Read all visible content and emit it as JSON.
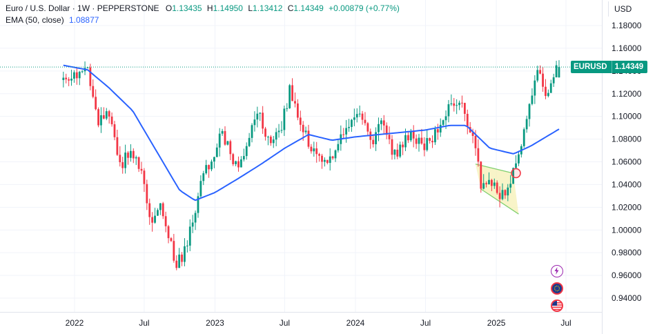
{
  "legend": {
    "symbol": "Euro / U.S. Dollar · 1W · PEPPERSTONE",
    "open_label": "O",
    "open": "1.13435",
    "high_label": "H",
    "high": "1.14950",
    "low_label": "L",
    "low": "1.13412",
    "close_label": "C",
    "close": "1.14349",
    "change": "+0.00879 (+0.77%)",
    "ema_label": "EMA (50, close)",
    "ema_value": "1.08877"
  },
  "currency_button": "USD",
  "price_tag": {
    "symbol": "EURUSD",
    "value": "1.14349"
  },
  "colors": {
    "up": "#089981",
    "down": "#f23645",
    "ema": "#2962ff",
    "wedge_fill": "#f5f0b6",
    "wedge_line": "#7fcf6f",
    "marker": "#f23645",
    "price_line": "#089981"
  },
  "chart_data": {
    "type": "candlestick",
    "interval": "1W",
    "x_ticks": [
      "2022",
      "Jul",
      "2023",
      "Jul",
      "2024",
      "Jul",
      "2025",
      "Jul"
    ],
    "y_ticks": [
      "1.18000",
      "1.16000",
      "1.14000",
      "1.12000",
      "1.10000",
      "1.08000",
      "1.06000",
      "1.04000",
      "1.02000",
      "1.00000",
      "0.98000",
      "0.96000",
      "0.94000"
    ],
    "ylim": [
      0.93,
      1.19
    ],
    "last_price": 1.14349,
    "close_path": [
      [
        "2021-12-03",
        1.132
      ],
      [
        "2022-01-07",
        1.136
      ],
      [
        "2022-02-04",
        1.144
      ],
      [
        "2022-03-04",
        1.093
      ],
      [
        "2022-04-01",
        1.105
      ],
      [
        "2022-04-29",
        1.054
      ],
      [
        "2022-05-27",
        1.073
      ],
      [
        "2022-06-24",
        1.055
      ],
      [
        "2022-07-15",
        1.008
      ],
      [
        "2022-08-12",
        1.025
      ],
      [
        "2022-09-02",
        0.995
      ],
      [
        "2022-09-23",
        0.969
      ],
      [
        "2022-10-21",
        0.986
      ],
      [
        "2022-11-18",
        1.032
      ],
      [
        "2022-12-16",
        1.058
      ],
      [
        "2023-01-20",
        1.085
      ],
      [
        "2023-02-24",
        1.055
      ],
      [
        "2023-03-24",
        1.076
      ],
      [
        "2023-04-28",
        1.102
      ],
      [
        "2023-05-26",
        1.072
      ],
      [
        "2023-06-23",
        1.09
      ],
      [
        "2023-07-14",
        1.123
      ],
      [
        "2023-08-18",
        1.087
      ],
      [
        "2023-09-22",
        1.065
      ],
      [
        "2023-10-06",
        1.055
      ],
      [
        "2023-11-10",
        1.069
      ],
      [
        "2023-12-29",
        1.104
      ],
      [
        "2024-02-16",
        1.078
      ],
      [
        "2024-03-08",
        1.094
      ],
      [
        "2024-04-12",
        1.065
      ],
      [
        "2024-05-24",
        1.085
      ],
      [
        "2024-06-28",
        1.071
      ],
      [
        "2024-08-02",
        1.091
      ],
      [
        "2024-08-30",
        1.105
      ],
      [
        "2024-09-27",
        1.117
      ],
      [
        "2024-11-01",
        1.083
      ],
      [
        "2024-11-22",
        1.042
      ],
      [
        "2024-12-27",
        1.042
      ],
      [
        "2025-01-10",
        1.025
      ],
      [
        "2025-02-14",
        1.05
      ],
      [
        "2025-03-14",
        1.088
      ],
      [
        "2025-04-11",
        1.136
      ],
      [
        "2025-04-25",
        1.137
      ],
      [
        "2025-05-16",
        1.116
      ],
      [
        "2025-06-06",
        1.14
      ],
      [
        "2025-06-13",
        1.1435
      ]
    ],
    "ema_path": [
      [
        "2021-12-03",
        1.145
      ],
      [
        "2022-02-04",
        1.141
      ],
      [
        "2022-04-01",
        1.125
      ],
      [
        "2022-06-01",
        1.105
      ],
      [
        "2022-08-01",
        1.07
      ],
      [
        "2022-10-01",
        1.035
      ],
      [
        "2022-11-10",
        1.026
      ],
      [
        "2023-01-01",
        1.033
      ],
      [
        "2023-03-01",
        1.045
      ],
      [
        "2023-05-01",
        1.058
      ],
      [
        "2023-07-01",
        1.072
      ],
      [
        "2023-09-01",
        1.084
      ],
      [
        "2023-11-01",
        1.079
      ],
      [
        "2024-01-01",
        1.082
      ],
      [
        "2024-03-01",
        1.084
      ],
      [
        "2024-05-01",
        1.086
      ],
      [
        "2024-07-01",
        1.088
      ],
      [
        "2024-09-01",
        1.092
      ],
      [
        "2024-10-15",
        1.092
      ],
      [
        "2024-12-15",
        1.072
      ],
      [
        "2025-02-15",
        1.067
      ],
      [
        "2025-04-01",
        1.074
      ],
      [
        "2025-06-13",
        1.0888
      ]
    ],
    "wedge": {
      "upper": [
        [
          "2024-11-08",
          1.058
        ],
        [
          "2025-02-14",
          1.05
        ]
      ],
      "lower": [
        [
          "2024-11-22",
          1.036
        ],
        [
          "2025-02-28",
          1.014
        ]
      ]
    },
    "marker": [
      "2025-02-21",
      1.05
    ]
  }
}
